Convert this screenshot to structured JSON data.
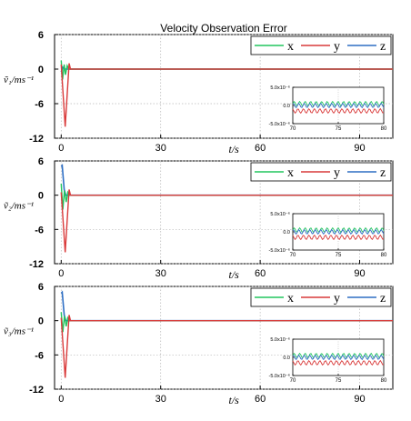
{
  "title": "Velocity Observation Error",
  "colors": {
    "x": "#22c55e",
    "y": "#d93a3a",
    "z": "#2f6fc4",
    "grid": "#b8b8b8",
    "axis": "#000000"
  },
  "chart_data": [
    {
      "type": "line",
      "ylabel": "ṽ₁/ms⁻¹",
      "xlabel": "t/s",
      "xlim": [
        -2,
        100
      ],
      "ylim": [
        -12,
        6
      ],
      "xticks": [
        "0",
        "30",
        "60",
        "90"
      ],
      "yticks": [
        "6",
        "0",
        "-6",
        "-12"
      ],
      "grid": true,
      "legend": {
        "position": "top-right",
        "entries": [
          "x",
          "y",
          "z"
        ]
      },
      "series": [
        {
          "name": "x",
          "x": [
            0,
            0.4,
            0.9,
            1.3,
            1.8,
            2.3,
            100
          ],
          "y": [
            1.5,
            -1.8,
            0.8,
            -1.0,
            0.6,
            0.0,
            0.0
          ]
        },
        {
          "name": "y",
          "x": [
            0,
            1.2,
            2.4,
            2.8,
            100
          ],
          "y": [
            0.8,
            -10.0,
            1.0,
            0.0,
            0.0
          ]
        },
        {
          "name": "z",
          "x": [
            0,
            0.5,
            1.0,
            100
          ],
          "y": [
            -0.5,
            0.3,
            0.0,
            0.0
          ]
        }
      ],
      "inset": {
        "xlim": [
          70,
          80
        ],
        "ylim": [
          -5e-06,
          5e-06
        ],
        "xticks": [
          "70",
          "75",
          "80"
        ],
        "yticks": [
          "5.0x10⁻⁶",
          "0.0",
          "-5.0x10⁻⁶"
        ],
        "levels": {
          "x": 5e-07,
          "z": 0.0,
          "y": -1.5e-06
        }
      }
    },
    {
      "type": "line",
      "ylabel": "ṽ₂/ms⁻¹",
      "xlabel": "t/s",
      "xlim": [
        -2,
        100
      ],
      "ylim": [
        -12,
        6
      ],
      "xticks": [
        "0",
        "30",
        "60",
        "90"
      ],
      "yticks": [
        "6",
        "0",
        "-6",
        "-12"
      ],
      "grid": true,
      "legend": {
        "position": "top-right",
        "entries": [
          "x",
          "y",
          "z"
        ]
      },
      "series": [
        {
          "name": "x",
          "x": [
            0,
            0.5,
            1.0,
            1.5,
            2.0,
            2.5,
            100
          ],
          "y": [
            2.0,
            -2.5,
            0.8,
            -1.2,
            0.5,
            0.0,
            0.0
          ]
        },
        {
          "name": "y",
          "x": [
            0,
            1.2,
            2.4,
            2.8,
            100
          ],
          "y": [
            0.5,
            -10.0,
            1.0,
            0.0,
            0.0
          ]
        },
        {
          "name": "z",
          "x": [
            0,
            0.3,
            0.9,
            1.4,
            100
          ],
          "y": [
            5.0,
            5.2,
            1.0,
            0.0,
            0.0
          ]
        }
      ],
      "inset": {
        "xlim": [
          70,
          80
        ],
        "ylim": [
          -5e-06,
          5e-06
        ],
        "xticks": [
          "70",
          "75",
          "80"
        ],
        "yticks": [
          "5.0x10⁻⁶",
          "0.0",
          "-5.0x10⁻⁶"
        ],
        "levels": {
          "x": 5e-07,
          "z": 0.0,
          "y": -1.5e-06
        }
      }
    },
    {
      "type": "line",
      "ylabel": "ṽ₃/ms⁻¹",
      "xlabel": "t/s",
      "xlim": [
        -2,
        100
      ],
      "ylim": [
        -12,
        6
      ],
      "xticks": [
        "0",
        "30",
        "60",
        "90"
      ],
      "yticks": [
        "6",
        "0",
        "-6",
        "-12"
      ],
      "grid": true,
      "legend": {
        "position": "top-right",
        "entries": [
          "x",
          "y",
          "z"
        ]
      },
      "series": [
        {
          "name": "x",
          "x": [
            0,
            0.5,
            1.0,
            1.5,
            2.0,
            2.5,
            100
          ],
          "y": [
            1.5,
            -2.0,
            0.8,
            -1.0,
            0.5,
            0.0,
            0.0
          ]
        },
        {
          "name": "y",
          "x": [
            0,
            1.2,
            2.4,
            2.8,
            100
          ],
          "y": [
            0.5,
            -10.0,
            1.0,
            0.0,
            0.0
          ]
        },
        {
          "name": "z",
          "x": [
            0,
            0.3,
            0.9,
            1.4,
            100
          ],
          "y": [
            4.8,
            5.0,
            1.0,
            0.0,
            0.0
          ]
        }
      ],
      "inset": {
        "xlim": [
          70,
          80
        ],
        "ylim": [
          -5e-06,
          5e-06
        ],
        "xticks": [
          "70",
          "75",
          "80"
        ],
        "yticks": [
          "5.0x10⁻⁶",
          "0.0",
          "-5.0x10⁻⁶"
        ],
        "levels": {
          "x": 5e-07,
          "z": 0.0,
          "y": -1.5e-06
        }
      }
    }
  ]
}
